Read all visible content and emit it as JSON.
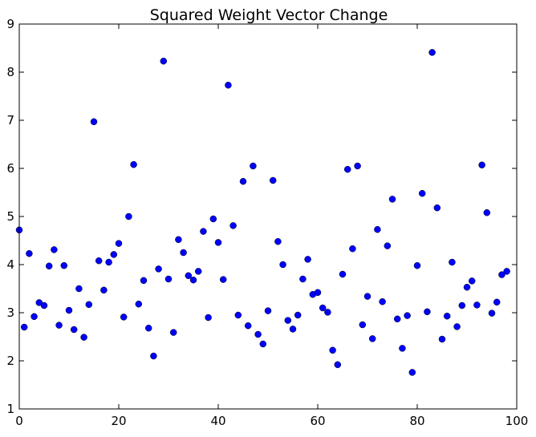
{
  "chart_data": {
    "type": "scatter",
    "title": "Squared Weight Vector Change",
    "xlabel": "",
    "ylabel": "",
    "xlim": [
      0,
      100
    ],
    "ylim": [
      1,
      9
    ],
    "x_ticks": [
      "0",
      "20",
      "40",
      "60",
      "80",
      "100"
    ],
    "y_ticks": [
      "1",
      "2",
      "3",
      "4",
      "5",
      "6",
      "7",
      "8",
      "9"
    ],
    "grid": false,
    "marker_color": "#0000ff",
    "marker_edge_color": "#000000",
    "x": [
      0,
      1,
      2,
      3,
      4,
      5,
      6,
      7,
      8,
      9,
      10,
      11,
      12,
      13,
      14,
      15,
      16,
      17,
      18,
      19,
      20,
      21,
      22,
      23,
      24,
      25,
      26,
      27,
      28,
      29,
      30,
      31,
      32,
      33,
      34,
      35,
      36,
      37,
      38,
      39,
      40,
      41,
      42,
      43,
      44,
      45,
      46,
      47,
      48,
      49,
      50,
      51,
      52,
      53,
      54,
      55,
      56,
      57,
      58,
      59,
      60,
      61,
      62,
      63,
      64,
      65,
      66,
      67,
      68,
      69,
      70,
      71,
      72,
      73,
      74,
      75,
      76,
      77,
      78,
      79,
      80,
      81,
      82,
      83,
      84,
      85,
      86,
      87,
      88,
      89,
      90,
      91,
      92,
      93,
      94,
      95,
      96,
      97,
      98
    ],
    "y": [
      4.72,
      2.7,
      4.23,
      2.92,
      3.21,
      3.15,
      3.97,
      4.31,
      2.74,
      3.98,
      3.05,
      2.65,
      3.5,
      2.49,
      3.17,
      6.97,
      4.08,
      3.47,
      4.05,
      4.21,
      4.44,
      2.91,
      5.0,
      6.08,
      3.18,
      3.67,
      2.68,
      2.1,
      3.91,
      8.23,
      3.7,
      2.59,
      4.52,
      4.25,
      3.77,
      3.68,
      3.86,
      4.69,
      2.9,
      4.95,
      4.46,
      3.69,
      7.73,
      4.81,
      2.95,
      5.73,
      2.73,
      6.05,
      2.55,
      2.35,
      3.04,
      5.75,
      4.48,
      4.0,
      2.84,
      2.66,
      2.95,
      3.7,
      4.11,
      3.38,
      3.42,
      3.1,
      3.01,
      2.22,
      1.92,
      3.8,
      5.98,
      4.33,
      6.05,
      2.75,
      3.34,
      2.46,
      4.73,
      3.23,
      4.39,
      5.36,
      2.87,
      2.26,
      2.94,
      1.76,
      3.98,
      5.48,
      3.02,
      8.41,
      5.18,
      2.45,
      2.93,
      4.05,
      2.71,
      3.15,
      3.53,
      3.66,
      3.16,
      6.07,
      5.08,
      2.99,
      3.22,
      3.79,
      3.86
    ]
  }
}
